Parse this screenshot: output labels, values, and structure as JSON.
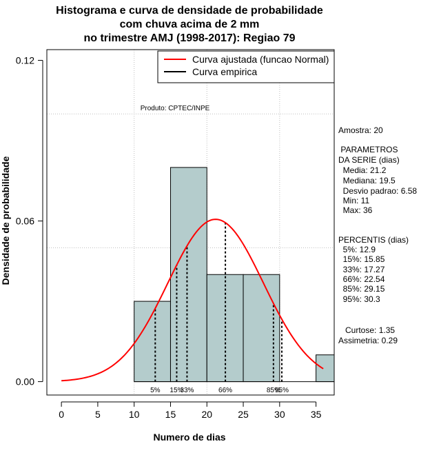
{
  "chart_data": {
    "type": "histogram",
    "title_lines": [
      "Histograma e curva de densidade de probabilidade",
      "com chuva acima de 2 mm",
      "no trimestre AMJ (1998-2017): Regiao 79"
    ],
    "xlabel": "Numero de dias",
    "ylabel": "Densidade de probabilidade",
    "xlim": [
      -2,
      37.5
    ],
    "ylim": [
      -0.005,
      0.124
    ],
    "xticks": [
      0,
      5,
      10,
      15,
      20,
      25,
      30,
      35
    ],
    "yticks": [
      0.0,
      0.06,
      0.12
    ],
    "ytick_labels": [
      "0.00",
      "0.06",
      "0.12"
    ],
    "bins": [
      {
        "x0": 10,
        "x1": 15,
        "density": 0.03
      },
      {
        "x0": 15,
        "x1": 20,
        "density": 0.08
      },
      {
        "x0": 20,
        "x1": 25,
        "density": 0.04
      },
      {
        "x0": 25,
        "x1": 30,
        "density": 0.04
      },
      {
        "x0": 30,
        "x1": 35,
        "density": 0.0
      },
      {
        "x0": 35,
        "x1": 40,
        "density": 0.01
      }
    ],
    "normal_fit": {
      "mean": 21.2,
      "sd": 6.58,
      "x_start": 0,
      "x_end": 36
    },
    "percentile_lines": [
      {
        "x": 12.9,
        "label": "5%"
      },
      {
        "x": 15.85,
        "label": "15%"
      },
      {
        "x": 17.27,
        "label": "33%"
      },
      {
        "x": 22.54,
        "label": "66%"
      },
      {
        "x": 29.15,
        "label": "85%"
      },
      {
        "x": 30.3,
        "label": "95%"
      }
    ],
    "grid_x": [
      10,
      20,
      30
    ],
    "grid_y": [
      0.05,
      0.1
    ],
    "legend": {
      "position": "top-right",
      "entries": [
        {
          "label": "Curva ajustada (funcao Normal)",
          "color": "#ff0000"
        },
        {
          "label": "Curva empirica",
          "color": "#000000"
        }
      ]
    },
    "annotation": "Produto: CPTEC/INPE",
    "colors": {
      "bar_fill": "#b4cccc",
      "fit": "#ff0000",
      "empirical": "#000000",
      "grid": "#bdbdbd"
    }
  },
  "stats_panel": {
    "amostra": "Amostra: 20",
    "param_header": " PARAMETROS",
    "param_sub": "DA SERIE (dias)",
    "media": "  Media: 21.2",
    "mediana": "  Mediana: 19.5",
    "desvio": "  Desvio padrao: 6.58",
    "min": "  Min: 11",
    "max": "  Max: 36",
    "perc_header": "PERCENTIS (dias)",
    "p5": "  5%: 12.9",
    "p15": "  15%: 15.85",
    "p33": "  33%: 17.27",
    "p66": "  66%: 22.54",
    "p85": "  85%: 29.15",
    "p95": "  95%: 30.3",
    "curtose": "   Curtose: 1.35",
    "assimetria": "Assimetria: 0.29"
  }
}
